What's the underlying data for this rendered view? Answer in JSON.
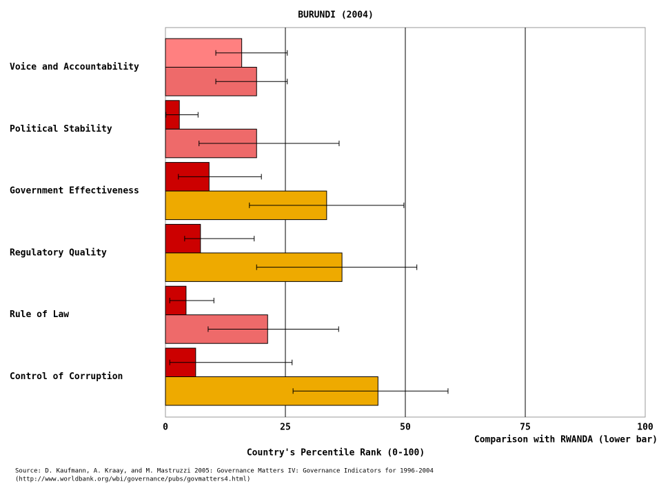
{
  "chart_data": {
    "type": "bar",
    "orientation": "horizontal",
    "title": "BURUNDI (2004)",
    "categories": [
      "Voice and Accountability",
      "Political Stability",
      "Government Effectiveness",
      "Regulatory Quality",
      "Rule of Law",
      "Control of Corruption"
    ],
    "series": [
      {
        "colors": [
          "#ff8080",
          "#cc0000",
          "#cc0000",
          "#cc0000",
          "#cc0000",
          "#cc0000"
        ],
        "values": [
          15.9,
          2.9,
          9.1,
          7.3,
          4.3,
          6.3
        ],
        "ci_low": [
          10.5,
          0.1,
          2.7,
          4.0,
          0.9,
          0.9
        ],
        "ci_high": [
          25.4,
          6.8,
          20.0,
          18.5,
          10.1,
          26.4
        ]
      },
      {
        "colors": [
          "#ee6a6a",
          "#ee6a6a",
          "#eeaa00",
          "#eeaa00",
          "#ee6a6a",
          "#eeaa00"
        ],
        "values": [
          19.0,
          19.0,
          33.6,
          36.8,
          21.3,
          44.3
        ],
        "ci_low": [
          10.5,
          7.0,
          17.5,
          19.0,
          8.9,
          26.6
        ],
        "ci_high": [
          25.4,
          36.2,
          49.7,
          52.4,
          36.1,
          58.9
        ]
      }
    ],
    "xlim": [
      0,
      100
    ],
    "xticks": [
      0,
      25,
      50,
      75,
      100
    ],
    "grid": true,
    "comparison_note": "Comparison with RWANDA (lower bar)",
    "xlabel": "Country's Percentile Rank (0-100)",
    "source": [
      "Source: D. Kaufmann, A. Kraay, and M. Mastruzzi 2005: Governance Matters IV: Governance Indicators for 1996-2004",
      "(http://www.worldbank.org/wbi/governance/pubs/govmatters4.html)"
    ]
  }
}
